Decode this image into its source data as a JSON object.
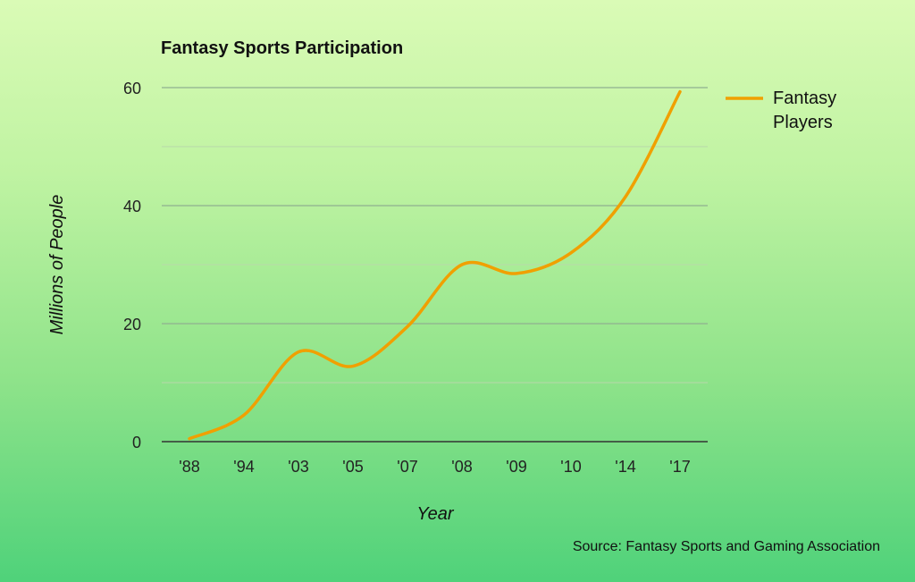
{
  "chart_data": {
    "type": "line",
    "title": "Fantasy Sports Participation",
    "xlabel": "Year",
    "ylabel": "Millions of People",
    "categories": [
      "'88",
      "'94",
      "'03",
      "'05",
      "'07",
      "'08",
      "'09",
      "'10",
      "'14",
      "'17"
    ],
    "series": [
      {
        "name": "Fantasy Players",
        "values": [
          0.5,
          4.5,
          15.2,
          12.8,
          19.5,
          30.0,
          28.5,
          32.0,
          41.5,
          59.3
        ],
        "color": "#f0a000"
      }
    ],
    "ylim": [
      0,
      60
    ],
    "yticks": [
      0,
      20,
      40,
      60
    ],
    "grid": true,
    "legend_position": "right",
    "source": "Source: Fantasy Sports and Gaming Association"
  }
}
